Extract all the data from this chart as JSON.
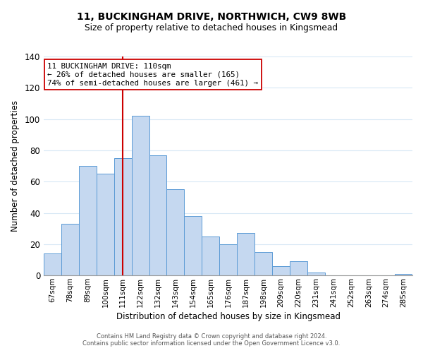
{
  "title_line1": "11, BUCKINGHAM DRIVE, NORTHWICH, CW9 8WB",
  "title_line2": "Size of property relative to detached houses in Kingsmead",
  "xlabel": "Distribution of detached houses by size in Kingsmead",
  "ylabel": "Number of detached properties",
  "bar_labels": [
    "67sqm",
    "78sqm",
    "89sqm",
    "100sqm",
    "111sqm",
    "122sqm",
    "132sqm",
    "143sqm",
    "154sqm",
    "165sqm",
    "176sqm",
    "187sqm",
    "198sqm",
    "209sqm",
    "220sqm",
    "231sqm",
    "241sqm",
    "252sqm",
    "263sqm",
    "274sqm",
    "285sqm"
  ],
  "bar_values": [
    14,
    33,
    70,
    65,
    75,
    102,
    77,
    55,
    38,
    25,
    20,
    27,
    15,
    6,
    9,
    2,
    0,
    0,
    0,
    0,
    1
  ],
  "bar_color": "#c5d8f0",
  "bar_edge_color": "#5b9bd5",
  "vline_x_index": 4,
  "vline_color": "#cc0000",
  "ylim": [
    0,
    140
  ],
  "yticks": [
    0,
    20,
    40,
    60,
    80,
    100,
    120,
    140
  ],
  "annotation_line1": "11 BUCKINGHAM DRIVE: 110sqm",
  "annotation_line2": "← 26% of detached houses are smaller (165)",
  "annotation_line3": "74% of semi-detached houses are larger (461) →",
  "annotation_box_color": "#ffffff",
  "annotation_box_edge": "#cc0000",
  "footer_line1": "Contains HM Land Registry data © Crown copyright and database right 2024.",
  "footer_line2": "Contains public sector information licensed under the Open Government Licence v3.0.",
  "background_color": "#ffffff",
  "grid_color": "#d8e8f5"
}
